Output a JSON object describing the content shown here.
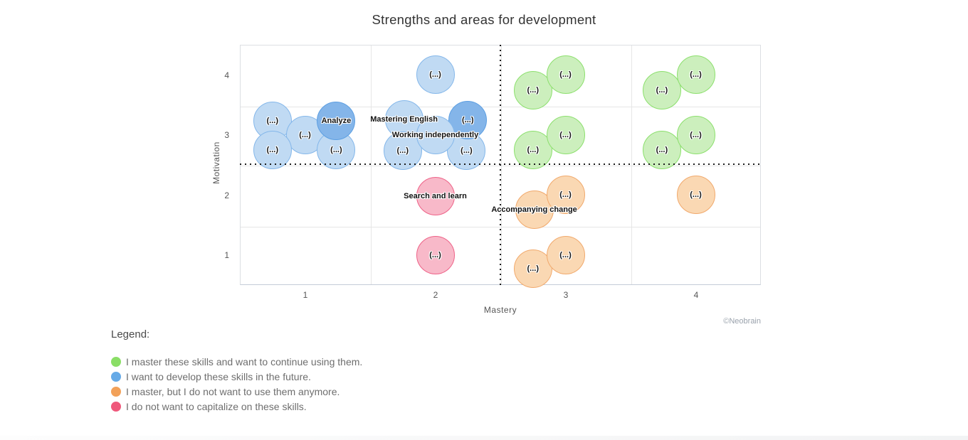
{
  "title": "Strengths and areas for development",
  "watermark": "©Neobrain",
  "axes": {
    "xlabel": "Mastery",
    "ylabel": "Motivation",
    "x_ticks": [
      "1",
      "2",
      "3",
      "4"
    ],
    "y_ticks": [
      "4",
      "3",
      "2",
      "1"
    ]
  },
  "chart_data": {
    "type": "scatter",
    "title": "Strengths and areas for development",
    "xlabel": "Mastery",
    "ylabel": "Motivation",
    "x_ticks": [
      1,
      2,
      3,
      4
    ],
    "y_ticks": [
      4,
      3,
      2,
      1
    ],
    "xlim": [
      0.5,
      4.5
    ],
    "ylim": [
      0.5,
      4.5
    ],
    "grid": true,
    "quadrant_divider": {
      "x": 2.5,
      "y": 2.5,
      "style": "dotted",
      "color": "#1b1b1b"
    },
    "bubble_radius_px": 27,
    "series": [
      {
        "name": "I want to develop these skills in the future.",
        "key": "blue",
        "fill": "#c0daf3",
        "border": "#84b7ea",
        "fill_dark": "#84b5e9",
        "border_dark": "#5d9fe2",
        "points": [
          {
            "label": "(...)",
            "mastery": 0.75,
            "motivation": 3.23
          },
          {
            "label": "(...)",
            "mastery": 1.0,
            "motivation": 3.0
          },
          {
            "label": "(...)",
            "mastery": 0.75,
            "motivation": 2.75
          },
          {
            "label": "(...)",
            "mastery": 1.24,
            "motivation": 2.75
          },
          {
            "label": "Analyze",
            "mastery": 1.24,
            "motivation": 3.23,
            "variant": "dark"
          },
          {
            "label": "(...)",
            "mastery": 2.0,
            "motivation": 4.0
          },
          {
            "label": "Mastering English",
            "mastery": 1.76,
            "motivation": 3.26
          },
          {
            "label": "(...)",
            "mastery": 1.75,
            "motivation": 2.74
          },
          {
            "label": "(...)",
            "mastery": 2.24,
            "motivation": 2.74
          },
          {
            "label": "(...)",
            "mastery": 2.25,
            "motivation": 3.25,
            "variant": "dark"
          },
          {
            "label": "Working independently",
            "mastery": 2.0,
            "motivation": 3.0
          }
        ]
      },
      {
        "name": "I master these skills and want to continue using them.",
        "key": "green",
        "fill": "#ccefbd",
        "border": "#8ce06d",
        "points": [
          {
            "label": "(...)",
            "mastery": 2.75,
            "motivation": 3.74
          },
          {
            "label": "(...)",
            "mastery": 3.0,
            "motivation": 4.0
          },
          {
            "label": "(...)",
            "mastery": 3.74,
            "motivation": 3.74
          },
          {
            "label": "(...)",
            "mastery": 4.0,
            "motivation": 4.0
          },
          {
            "label": "(...)",
            "mastery": 2.75,
            "motivation": 2.75
          },
          {
            "label": "(...)",
            "mastery": 3.0,
            "motivation": 3.0
          },
          {
            "label": "(...)",
            "mastery": 3.74,
            "motivation": 2.75
          },
          {
            "label": "(...)",
            "mastery": 4.0,
            "motivation": 3.0
          }
        ]
      },
      {
        "name": "I master, but I do not want to use them anymore.",
        "key": "orange",
        "fill": "#fad8b3",
        "border": "#f1a96c",
        "points": [
          {
            "label": "Accompanying change",
            "mastery": 2.76,
            "motivation": 1.75
          },
          {
            "label": "(...)",
            "mastery": 3.0,
            "motivation": 2.0
          },
          {
            "label": "(...)",
            "mastery": 4.0,
            "motivation": 2.0
          },
          {
            "label": "(...)",
            "mastery": 2.75,
            "motivation": 0.77
          },
          {
            "label": "(...)",
            "mastery": 3.0,
            "motivation": 1.0
          }
        ]
      },
      {
        "name": "I do not want to capitalize on these skills.",
        "key": "pink",
        "fill": "#f8b9c9",
        "border": "#ee6187",
        "points": [
          {
            "label": "Search and learn",
            "mastery": 2.0,
            "motivation": 1.98
          },
          {
            "label": "(...)",
            "mastery": 2.0,
            "motivation": 1.0
          }
        ]
      }
    ]
  },
  "legend": {
    "heading": "Legend:",
    "items": [
      {
        "color": "#8ade66",
        "label": "I master these skills and want to continue using them."
      },
      {
        "color": "#66aae7",
        "label": "I want to develop these skills in the future."
      },
      {
        "color": "#f2a159",
        "label": "I master, but I do not want to use them anymore."
      },
      {
        "color": "#ef587b",
        "label": "I do not want to capitalize on these skills."
      }
    ]
  }
}
